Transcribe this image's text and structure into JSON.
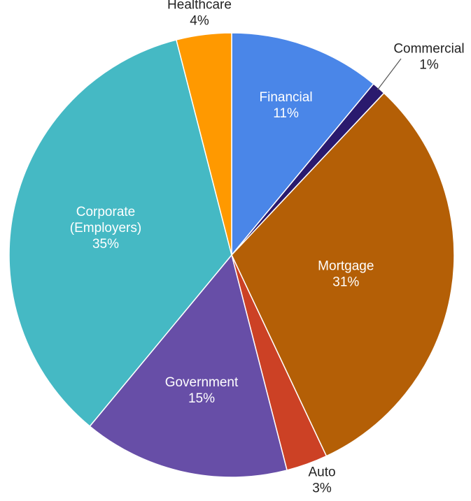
{
  "chart_data": {
    "type": "pie",
    "title": "",
    "start_angle_deg": 0,
    "direction": "clockwise",
    "slices": [
      {
        "name": "Financial",
        "value": 11,
        "label": "11%",
        "color": "#4a86e8",
        "label_position": "inside"
      },
      {
        "name": "Commercial",
        "value": 1,
        "label": "1%",
        "color": "#2a1a6e",
        "label_position": "outside"
      },
      {
        "name": "Mortgage",
        "value": 31,
        "label": "31%",
        "color": "#b45f06",
        "label_position": "inside"
      },
      {
        "name": "Auto",
        "value": 3,
        "label": "3%",
        "color": "#cc4125",
        "label_position": "outside"
      },
      {
        "name": "Government",
        "value": 15,
        "label": "15%",
        "color": "#674ea7",
        "label_position": "inside"
      },
      {
        "name": "Corporate (Employers)",
        "value": 35,
        "label": "35%",
        "color": "#45b9c4",
        "label_position": "inside"
      },
      {
        "name": "Healthcare",
        "value": 4,
        "label": "4%",
        "color": "#ff9900",
        "label_position": "outside"
      }
    ]
  }
}
